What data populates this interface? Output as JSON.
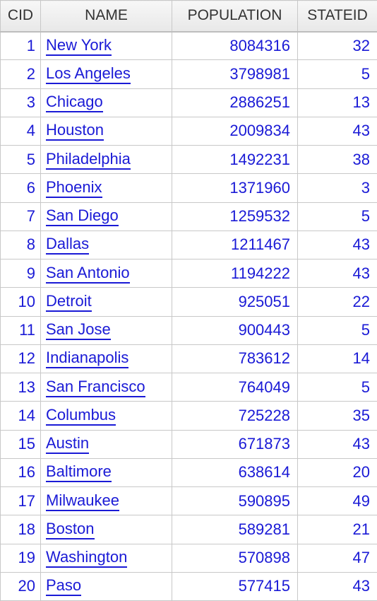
{
  "columns": {
    "cid": "CID",
    "name": "NAME",
    "population": "POPULATION",
    "stateid": "STATEID"
  },
  "rows": [
    {
      "cid": "1",
      "name": "New York",
      "population": "8084316",
      "stateid": "32"
    },
    {
      "cid": "2",
      "name": "Los Angeles",
      "population": "3798981",
      "stateid": "5"
    },
    {
      "cid": "3",
      "name": "Chicago",
      "population": "2886251",
      "stateid": "13"
    },
    {
      "cid": "4",
      "name": "Houston",
      "population": "2009834",
      "stateid": "43"
    },
    {
      "cid": "5",
      "name": "Philadelphia",
      "population": "1492231",
      "stateid": "38"
    },
    {
      "cid": "6",
      "name": "Phoenix",
      "population": "1371960",
      "stateid": "3"
    },
    {
      "cid": "7",
      "name": "San Diego",
      "population": "1259532",
      "stateid": "5"
    },
    {
      "cid": "8",
      "name": "Dallas",
      "population": "1211467",
      "stateid": "43"
    },
    {
      "cid": "9",
      "name": "San Antonio",
      "population": "1194222",
      "stateid": "43"
    },
    {
      "cid": "10",
      "name": "Detroit",
      "population": "925051",
      "stateid": "22"
    },
    {
      "cid": "11",
      "name": "San Jose",
      "population": "900443",
      "stateid": "5"
    },
    {
      "cid": "12",
      "name": "Indianapolis",
      "population": "783612",
      "stateid": "14"
    },
    {
      "cid": "13",
      "name": "San Francisco",
      "population": "764049",
      "stateid": "5"
    },
    {
      "cid": "14",
      "name": "Columbus",
      "population": "725228",
      "stateid": "35"
    },
    {
      "cid": "15",
      "name": "Austin",
      "population": "671873",
      "stateid": "43"
    },
    {
      "cid": "16",
      "name": "Baltimore",
      "population": "638614",
      "stateid": "20"
    },
    {
      "cid": "17",
      "name": "Milwaukee",
      "population": "590895",
      "stateid": "49"
    },
    {
      "cid": "18",
      "name": "Boston",
      "population": "589281",
      "stateid": "21"
    },
    {
      "cid": "19",
      "name": "Washington",
      "population": "570898",
      "stateid": "47"
    },
    {
      "cid": "20",
      "name": "Paso",
      "population": "577415",
      "stateid": "43"
    }
  ],
  "colors": {
    "link": "#1a1ad6",
    "grid": "#c8c8c8",
    "header_text": "#333333"
  }
}
